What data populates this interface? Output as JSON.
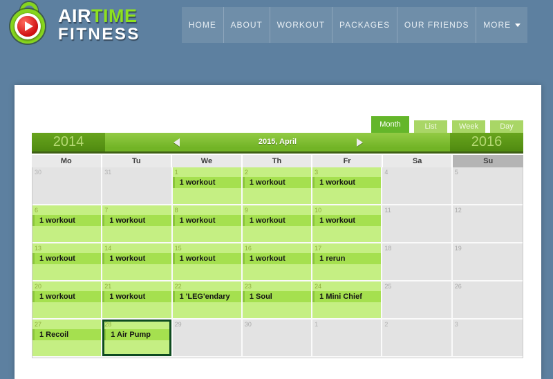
{
  "brand": {
    "line1_white": "AIR",
    "line1_green": "TIME",
    "line2": "FITNESS"
  },
  "nav": {
    "items": [
      {
        "label": "HOME"
      },
      {
        "label": "ABOUT"
      },
      {
        "label": "WORKOUT"
      },
      {
        "label": "PACKAGES"
      },
      {
        "label": "OUR FRIENDS"
      },
      {
        "label": "MORE",
        "caret": true
      }
    ]
  },
  "calendar": {
    "prev_year": "2014",
    "next_year": "2016",
    "current_label": "2015, April",
    "tabs": [
      {
        "label": "Month",
        "active": true
      },
      {
        "label": "List",
        "active": false
      },
      {
        "label": "Week",
        "active": false
      },
      {
        "label": "Day",
        "active": false
      }
    ],
    "weekdays": [
      "Mo",
      "Tu",
      "We",
      "Th",
      "Fr",
      "Sa",
      "Su"
    ],
    "weeks": [
      [
        {
          "date": "30",
          "type": "other"
        },
        {
          "date": "31",
          "type": "other"
        },
        {
          "date": "1",
          "type": "event",
          "event": "1 workout"
        },
        {
          "date": "2",
          "type": "event",
          "event": "1 workout"
        },
        {
          "date": "3",
          "type": "event",
          "event": "1 workout"
        },
        {
          "date": "4",
          "type": "plain"
        },
        {
          "date": "5",
          "type": "plain"
        }
      ],
      [
        {
          "date": "6",
          "type": "event",
          "event": "1 workout"
        },
        {
          "date": "7",
          "type": "event",
          "event": "1 workout"
        },
        {
          "date": "8",
          "type": "event",
          "event": "1 workout"
        },
        {
          "date": "9",
          "type": "event",
          "event": "1 workout"
        },
        {
          "date": "10",
          "type": "event",
          "event": "1 workout"
        },
        {
          "date": "11",
          "type": "plain"
        },
        {
          "date": "12",
          "type": "plain"
        }
      ],
      [
        {
          "date": "13",
          "type": "event",
          "event": "1 workout"
        },
        {
          "date": "14",
          "type": "event",
          "event": "1 workout"
        },
        {
          "date": "15",
          "type": "event",
          "event": "1 workout"
        },
        {
          "date": "16",
          "type": "event",
          "event": "1 workout"
        },
        {
          "date": "17",
          "type": "event",
          "event": "1 rerun"
        },
        {
          "date": "18",
          "type": "plain"
        },
        {
          "date": "19",
          "type": "plain"
        }
      ],
      [
        {
          "date": "20",
          "type": "event",
          "event": "1 workout"
        },
        {
          "date": "21",
          "type": "event",
          "event": "1 workout"
        },
        {
          "date": "22",
          "type": "event",
          "event": "1 'LEG'endary"
        },
        {
          "date": "23",
          "type": "event",
          "event": "1 Soul"
        },
        {
          "date": "24",
          "type": "event",
          "event": "1 Mini Chief"
        },
        {
          "date": "25",
          "type": "plain"
        },
        {
          "date": "26",
          "type": "plain"
        }
      ],
      [
        {
          "date": "27",
          "type": "event",
          "event": "1 Recoil"
        },
        {
          "date": "28",
          "type": "selected",
          "event": "1 Air Pump"
        },
        {
          "date": "29",
          "type": "plain"
        },
        {
          "date": "30",
          "type": "plain"
        },
        {
          "date": "1",
          "type": "other"
        },
        {
          "date": "2",
          "type": "other"
        },
        {
          "date": "3",
          "type": "other"
        }
      ]
    ]
  },
  "colors": {
    "page_bg": "#5d80a0",
    "nav_bg": "#6f8ea9",
    "accent_green": "#72b426",
    "cell_green": "#c5ef83",
    "event_green": "#a5e04f",
    "selected_border": "#0e4b20",
    "brand_green": "#8ee11e"
  }
}
